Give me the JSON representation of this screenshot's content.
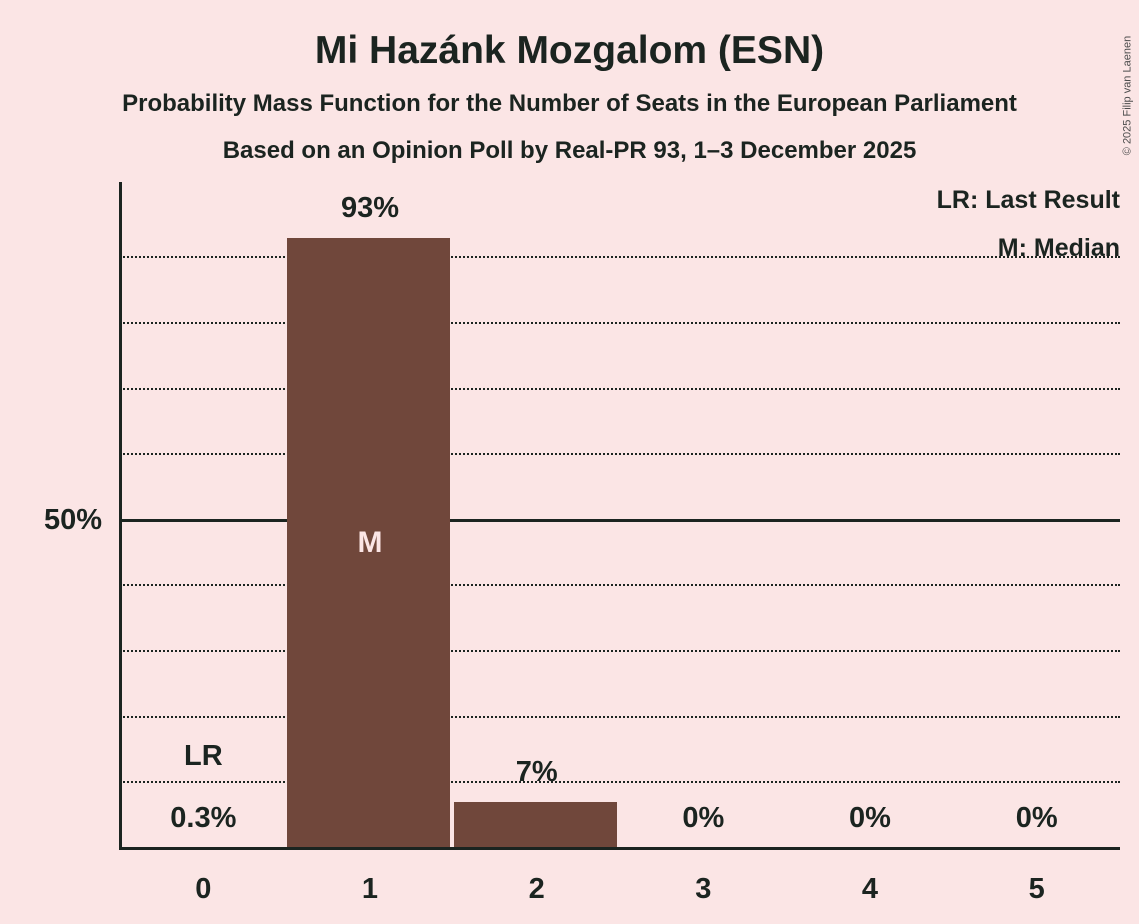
{
  "title": "Mi Hazánk Mozgalom (ESN)",
  "subtitle": "Probability Mass Function for the Number of Seats in the European Parliament",
  "poll_line": "Based on an Opinion Poll by Real-PR 93, 1–3 December 2025",
  "copyright": "© 2025 Filip van Laenen",
  "legend": {
    "lr_label": "LR: Last Result",
    "m_label": "M: Median"
  },
  "colors": {
    "background": "#FBE5E5",
    "bar": "#70473B",
    "text": "#1B2420"
  },
  "chart_data": {
    "type": "bar",
    "title": "Mi Hazánk Mozgalom (ESN)",
    "xlabel": "",
    "ylabel": "",
    "categories": [
      "0",
      "1",
      "2",
      "3",
      "4",
      "5"
    ],
    "values": [
      0.3,
      93,
      7,
      0,
      0,
      0
    ],
    "value_labels": [
      "0.3%",
      "93%",
      "7%",
      "0%",
      "0%",
      "0%"
    ],
    "ylim": [
      0,
      100
    ],
    "y_axis_label": "50%",
    "gridlines_pct": [
      10,
      20,
      30,
      40,
      50,
      60,
      70,
      80,
      90
    ],
    "emphasis_line_pct": 50,
    "grid": "dotted",
    "legend_position": "top-right",
    "median_seats_index": 1,
    "median_marker": "M",
    "last_result_seats_index": 0,
    "last_result_marker": "LR"
  }
}
